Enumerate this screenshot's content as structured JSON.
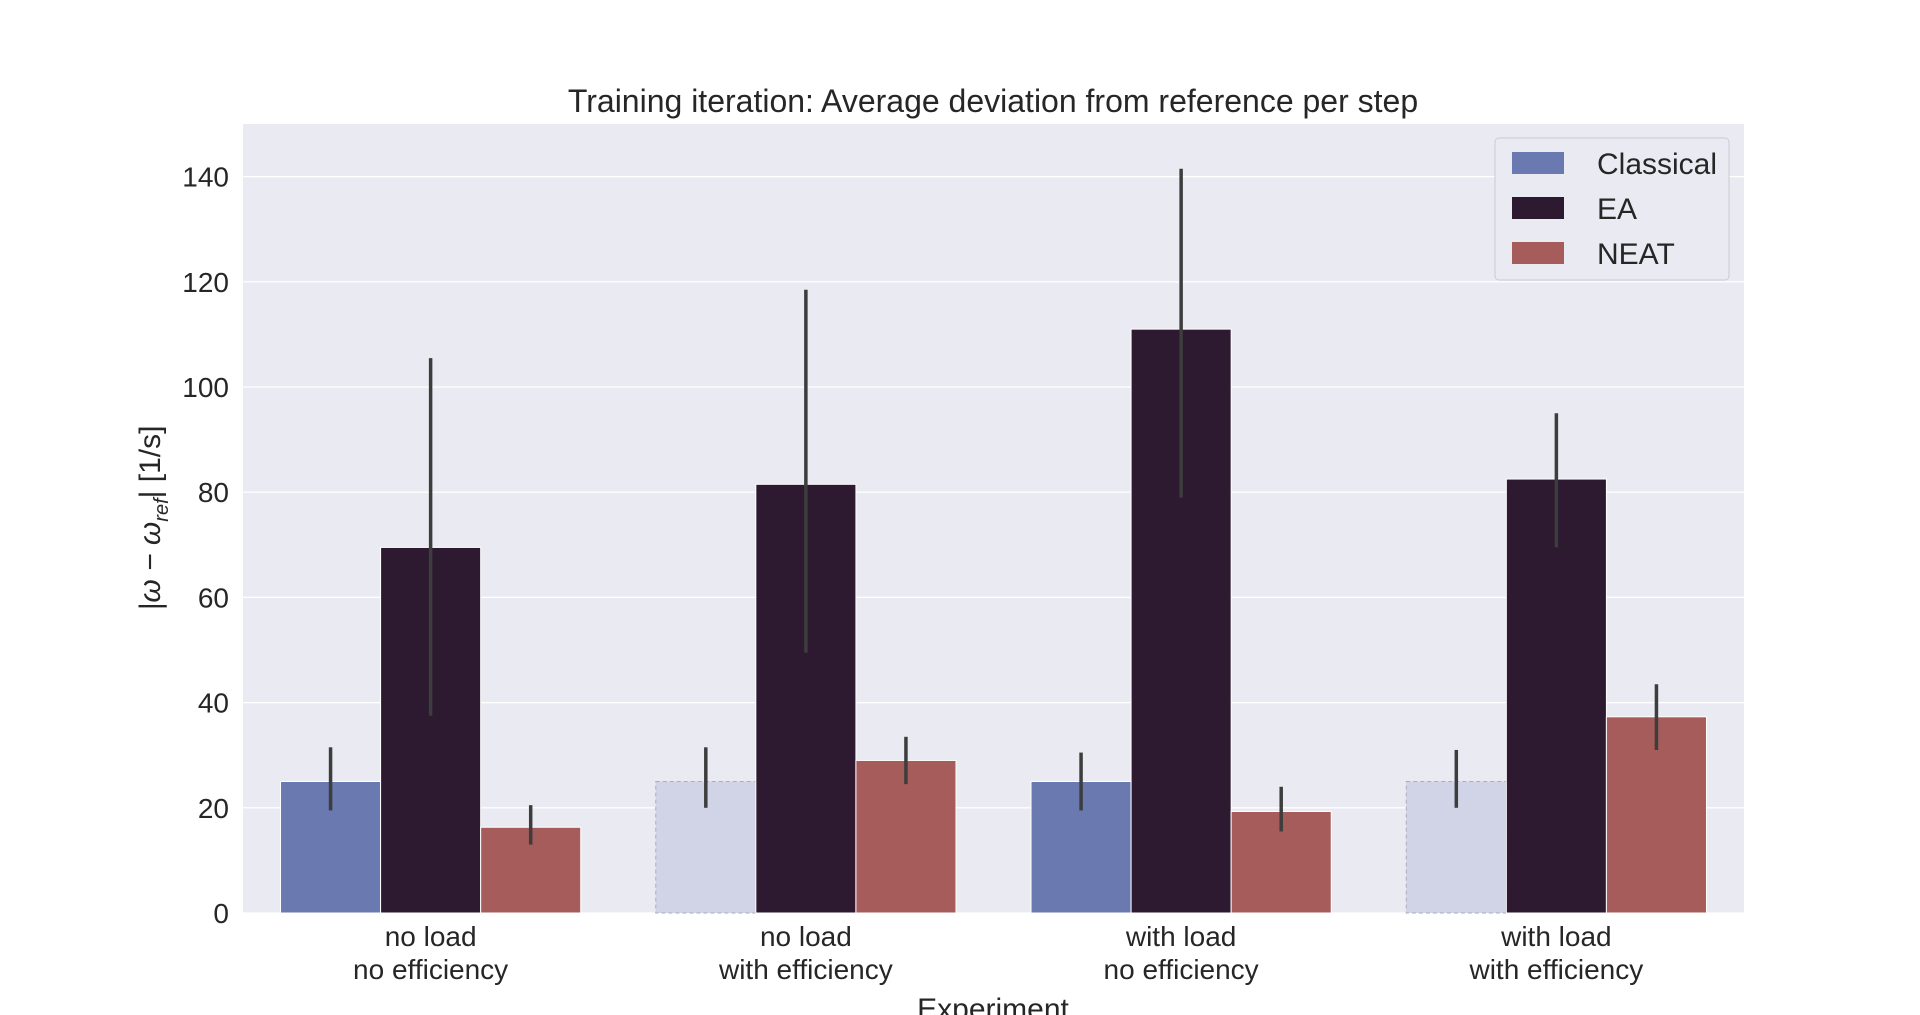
{
  "chart_data": {
    "type": "bar",
    "title": "Training iteration: Average deviation from reference per step",
    "xlabel": "Experiment",
    "ylabel": "|ω − ω_ref| [1/s]",
    "ylabel_parts": {
      "pre": "|ω − ω",
      "sub": "ref",
      "post": "| [1/s]"
    },
    "categories": [
      [
        "no load",
        "no efficiency"
      ],
      [
        "no load",
        "with efficiency"
      ],
      [
        "with load",
        "no efficiency"
      ],
      [
        "with load",
        "with efficiency"
      ]
    ],
    "ylim": [
      0,
      150
    ],
    "yticks": [
      0,
      20,
      40,
      60,
      80,
      100,
      120,
      140
    ],
    "grid": true,
    "legend_position": "top-right",
    "series": [
      {
        "name": "Classical",
        "color": "#6a7ab0",
        "values": [
          25,
          25,
          25,
          25
        ],
        "err_low": [
          19.5,
          20,
          19.5,
          20
        ],
        "err_high": [
          31.5,
          31.5,
          30.5,
          31
        ],
        "faded": [
          false,
          true,
          false,
          true
        ],
        "faded_color": "#d1d4e6"
      },
      {
        "name": "EA",
        "color": "#2d1a30",
        "values": [
          69.5,
          81.5,
          111,
          82.5
        ],
        "err_low": [
          37.5,
          49.5,
          79,
          69.5
        ],
        "err_high": [
          105.5,
          118.5,
          141.5,
          95
        ]
      },
      {
        "name": "NEAT",
        "color": "#a65c5a",
        "values": [
          16.3,
          29,
          19.3,
          37.3
        ],
        "err_low": [
          13,
          24.5,
          15.5,
          31
        ],
        "err_high": [
          20.5,
          33.5,
          24,
          43.5
        ]
      }
    ]
  }
}
